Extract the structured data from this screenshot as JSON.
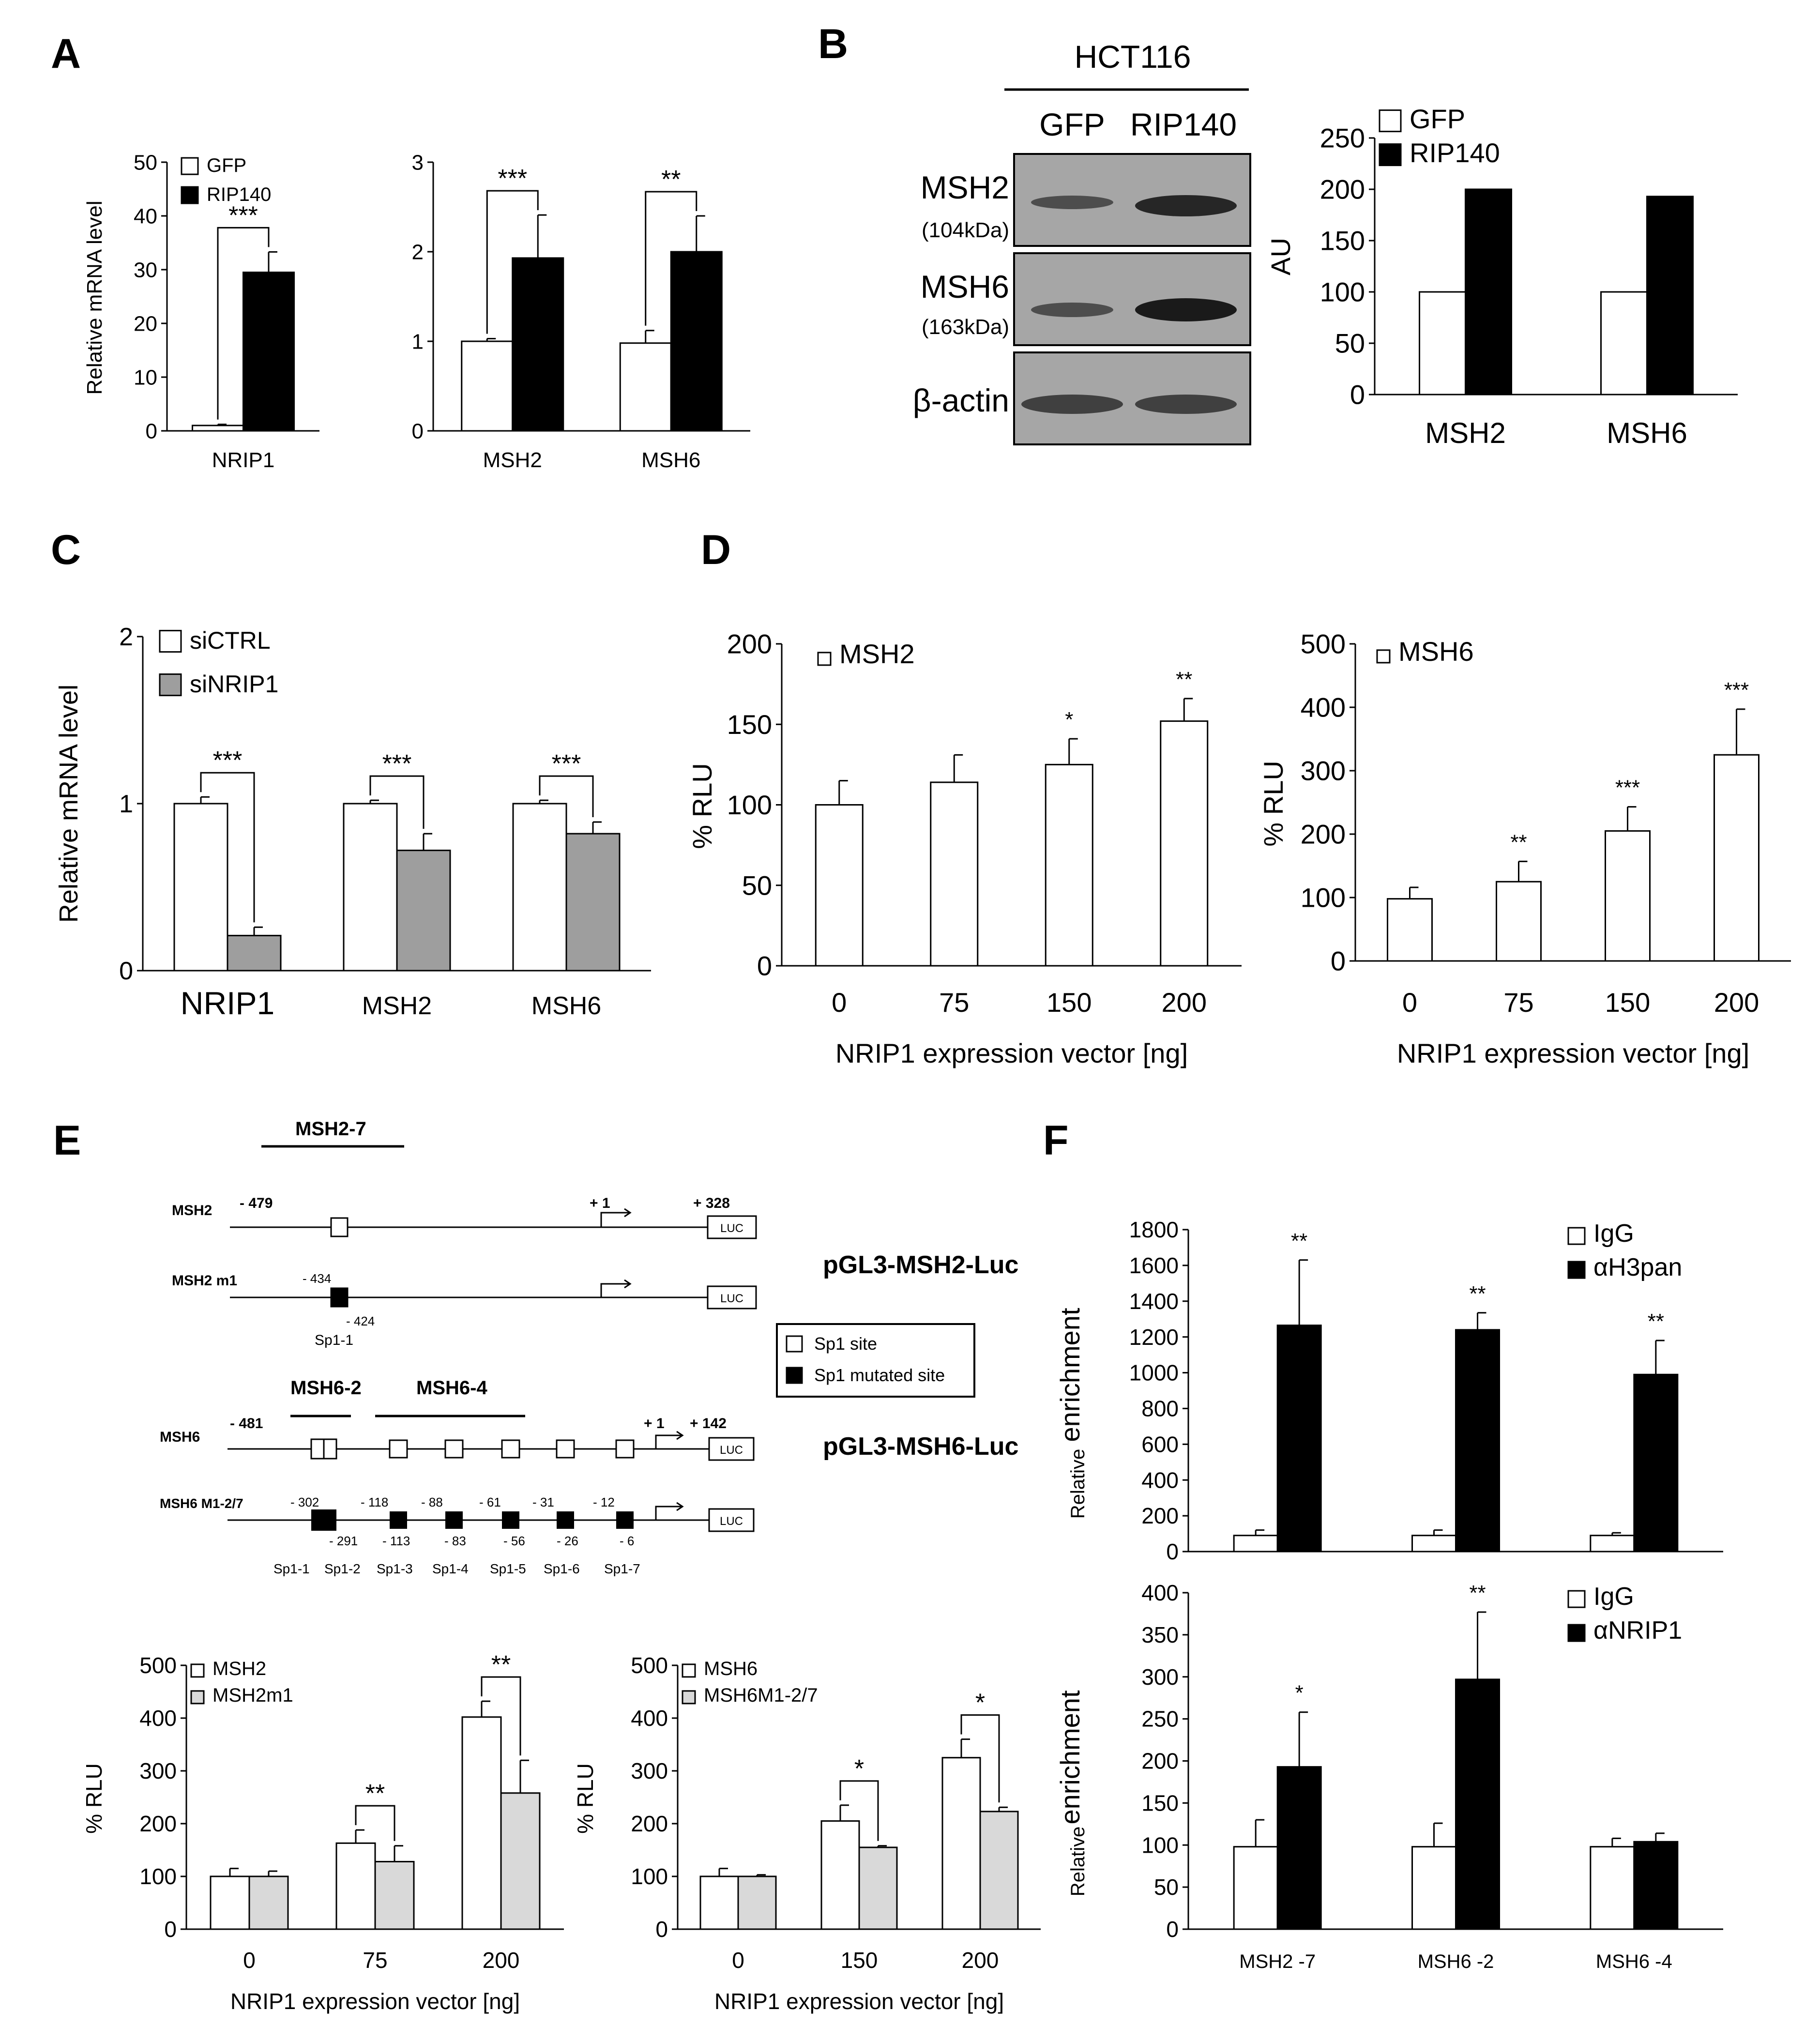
{
  "panels": {
    "A": "A",
    "B": "B",
    "C": "C",
    "D": "D",
    "E": "E",
    "F": "F"
  },
  "western_blot": {
    "cell_line": "HCT116",
    "lanes": [
      "GFP",
      "RIP140"
    ],
    "rows": [
      {
        "name": "MSH2",
        "size": "(104kDa)"
      },
      {
        "name": "MSH6",
        "size": "(163kDa)"
      },
      {
        "name": "β-actin",
        "size": ""
      }
    ]
  },
  "promoter": {
    "msh2": {
      "region_label": "MSH2-7",
      "wt_label": "MSH2",
      "mut_label": "MSH2 m1",
      "start": "- 479",
      "tss": "+ 1",
      "end": "+ 328",
      "m1_left": "- 434",
      "m1_right": "- 424",
      "site": "Sp1-1",
      "construct": "pGL3-MSH2-Luc",
      "luc": "LUC"
    },
    "msh6": {
      "region2": "MSH6-2",
      "region4": "MSH6-4",
      "wt_label": "MSH6",
      "mut_label": "MSH6 M1-2/7",
      "start": "- 481",
      "tss": "+ 1",
      "end": "+ 142",
      "construct": "pGL3-MSH6-Luc",
      "luc": "LUC",
      "upper_positions": [
        "- 302",
        "- 118",
        "- 88",
        "- 61",
        "- 31",
        "- 12"
      ],
      "lower_positions": [
        "- 291",
        "- 113",
        "- 83",
        "- 56",
        "- 26",
        "- 6"
      ],
      "sites": [
        "Sp1-1",
        "Sp1-2",
        "Sp1-3",
        "Sp1-4",
        "Sp1-5",
        "Sp1-6",
        "Sp1-7"
      ]
    },
    "legend": {
      "open": "Sp1 site",
      "filled": "Sp1 mutated site"
    }
  },
  "chart_data": [
    {
      "id": "A1",
      "type": "bar",
      "categories": [
        "NRIP1"
      ],
      "series": [
        {
          "name": "GFP",
          "values": [
            1
          ],
          "errors": [
            0.2
          ]
        },
        {
          "name": "RIP140",
          "values": [
            29.5
          ],
          "errors": [
            3.8
          ]
        }
      ],
      "ylabel": "Relative mRNA level",
      "ylim": [
        0,
        50
      ],
      "yticks": [
        0,
        10,
        20,
        30,
        40,
        50
      ],
      "sig": [
        "***"
      ]
    },
    {
      "id": "A2",
      "type": "bar",
      "categories": [
        "MSH2",
        "MSH6"
      ],
      "series": [
        {
          "name": "GFP",
          "values": [
            1.0,
            0.98
          ],
          "errors": [
            0.03,
            0.14
          ]
        },
        {
          "name": "RIP140",
          "values": [
            1.93,
            2.0
          ],
          "errors": [
            0.48,
            0.4
          ]
        }
      ],
      "ylim": [
        0,
        3
      ],
      "yticks": [
        0,
        1,
        2,
        3
      ],
      "sig": [
        "***",
        "**"
      ]
    },
    {
      "id": "B",
      "type": "bar",
      "categories": [
        "MSH2",
        "MSH6"
      ],
      "series": [
        {
          "name": "GFP",
          "values": [
            100,
            100
          ]
        },
        {
          "name": "RIP140",
          "values": [
            200,
            193
          ]
        }
      ],
      "ylabel": "AU",
      "ylim": [
        0,
        250
      ],
      "yticks": [
        0,
        50,
        100,
        150,
        200,
        250
      ]
    },
    {
      "id": "C",
      "type": "bar",
      "categories": [
        "NRIP1",
        "MSH2",
        "MSH6"
      ],
      "series": [
        {
          "name": "siCTRL",
          "values": [
            1.0,
            1.0,
            1.0
          ],
          "errors": [
            0.04,
            0.02,
            0.02
          ]
        },
        {
          "name": "siNRIP1",
          "values": [
            0.21,
            0.72,
            0.82
          ],
          "errors": [
            0.05,
            0.1,
            0.07
          ]
        }
      ],
      "ylabel": "Relative mRNA level",
      "ylim": [
        0,
        2
      ],
      "yticks": [
        0,
        1,
        2
      ],
      "sig": [
        "***",
        "***",
        "***"
      ]
    },
    {
      "id": "D1",
      "type": "bar",
      "categories": [
        "0",
        "75",
        "150",
        "200"
      ],
      "series": [
        {
          "name": "MSH2",
          "values": [
            100,
            114,
            125,
            152
          ],
          "errors": [
            15,
            17,
            16,
            14
          ]
        }
      ],
      "xlabel": "NRIP1 expression vector [ng]",
      "ylabel": "% RLU",
      "ylim": [
        0,
        200
      ],
      "yticks": [
        0,
        50,
        100,
        150,
        200
      ],
      "sig": [
        "",
        "",
        "*",
        "**"
      ]
    },
    {
      "id": "D2",
      "type": "bar",
      "categories": [
        "0",
        "75",
        "150",
        "200"
      ],
      "series": [
        {
          "name": "MSH6",
          "values": [
            98,
            125,
            205,
            325
          ],
          "errors": [
            18,
            32,
            38,
            72
          ]
        }
      ],
      "xlabel": "NRIP1 expression vector [ng]",
      "ylabel": "% RLU",
      "ylim": [
        0,
        500
      ],
      "yticks": [
        0,
        100,
        200,
        300,
        400,
        500
      ],
      "sig": [
        "",
        "**",
        "***",
        "***"
      ]
    },
    {
      "id": "E1",
      "type": "bar",
      "categories": [
        "0",
        "75",
        "200"
      ],
      "series": [
        {
          "name": "MSH2",
          "values": [
            100,
            163,
            402
          ],
          "errors": [
            15,
            25,
            30
          ]
        },
        {
          "name": "MSH2m1",
          "values": [
            100,
            128,
            258
          ],
          "errors": [
            10,
            30,
            62
          ]
        }
      ],
      "xlabel": "NRIP1 expression vector [ng]",
      "ylabel": "% RLU",
      "ylim": [
        0,
        500
      ],
      "yticks": [
        0,
        100,
        200,
        300,
        400,
        500
      ],
      "sig": [
        "",
        "**",
        "**"
      ]
    },
    {
      "id": "E2",
      "type": "bar",
      "categories": [
        "0",
        "150",
        "200"
      ],
      "series": [
        {
          "name": "MSH6",
          "values": [
            100,
            205,
            325
          ],
          "errors": [
            15,
            30,
            35
          ]
        },
        {
          "name": "MSH6M1-2/7",
          "values": [
            100,
            155,
            223
          ],
          "errors": [
            3,
            3,
            8
          ]
        }
      ],
      "xlabel": "NRIP1 expression vector [ng]",
      "ylabel": "% RLU",
      "ylim": [
        0,
        500
      ],
      "yticks": [
        0,
        100,
        200,
        300,
        400,
        500
      ],
      "sig": [
        "",
        "*",
        "*"
      ]
    },
    {
      "id": "F1",
      "type": "bar",
      "categories": [
        "MSH2 -7",
        "MSH6 -2",
        "MSH6 -4"
      ],
      "series": [
        {
          "name": "IgG",
          "values": [
            90,
            90,
            90
          ],
          "errors": [
            30,
            30,
            15
          ]
        },
        {
          "name": "αH3pan",
          "values": [
            1265,
            1240,
            990
          ],
          "errors": [
            365,
            95,
            190
          ]
        }
      ],
      "ylabel_prefix": "Relative",
      "ylabel": "enrichment",
      "ylim": [
        0,
        1800
      ],
      "yticks": [
        0,
        200,
        400,
        600,
        800,
        1000,
        1200,
        1400,
        1600,
        1800
      ],
      "sig": [
        "**",
        "**",
        "**"
      ]
    },
    {
      "id": "F2",
      "type": "bar",
      "categories": [
        "MSH2 -7",
        "MSH6 -2",
        "MSH6 -4"
      ],
      "series": [
        {
          "name": "IgG",
          "values": [
            98,
            98,
            98
          ],
          "errors": [
            32,
            28,
            10
          ]
        },
        {
          "name": "αNRIP1",
          "values": [
            193,
            297,
            104
          ],
          "errors": [
            65,
            80,
            10
          ]
        }
      ],
      "ylabel_prefix": "Relative",
      "ylabel": "enrichment",
      "ylim": [
        0,
        400
      ],
      "yticks": [
        0,
        50,
        100,
        150,
        200,
        250,
        300,
        350,
        400
      ],
      "xlabels": [
        "MSH2 -7",
        "MSH6 -2",
        "MSH6 -4"
      ],
      "sig": [
        "*",
        "**",
        ""
      ]
    }
  ],
  "colors": {
    "white": "#ffffff",
    "black": "#000000",
    "gray": "#9e9e9e",
    "lightgray": "#d9d9d9",
    "blot": "#a6a6a6"
  }
}
